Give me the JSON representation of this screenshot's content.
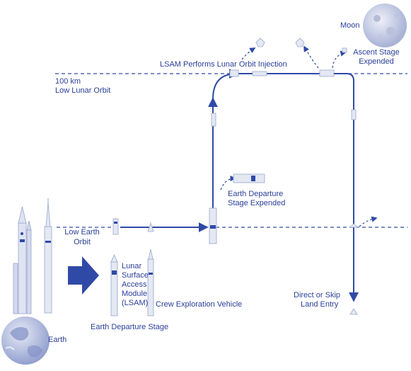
{
  "labels": {
    "moon": "Moon",
    "llo_line1": "100 km",
    "llo_line2": "Low Lunar Orbit",
    "loi": "LSAM Performs Lunar Orbit Injection",
    "ascent_line1": "Ascent Stage",
    "ascent_line2": "Expended",
    "eds_expended_line1": "Earth Departure",
    "eds_expended_line2": "Stage Expended",
    "leo_line1": "Low Earth",
    "leo_line2": "Orbit",
    "lsam_line1": "Lunar",
    "lsam_line2": "Surface",
    "lsam_line3": "Access",
    "lsam_line4": "Module",
    "lsam_line5": "(LSAM)",
    "cev": "Crew Exploration Vehicle",
    "eds": "Earth Departure Stage",
    "entry_line1": "Direct or Skip",
    "entry_line2": "Land Entry",
    "earth": "Earth"
  },
  "colors": {
    "line": "#2f4aa6",
    "text": "#2a3f9a",
    "body": "#e4e8f3",
    "body_edge": "#9aa6cc",
    "moon": "#c9cfe3",
    "earth": "#bcc6e3"
  }
}
